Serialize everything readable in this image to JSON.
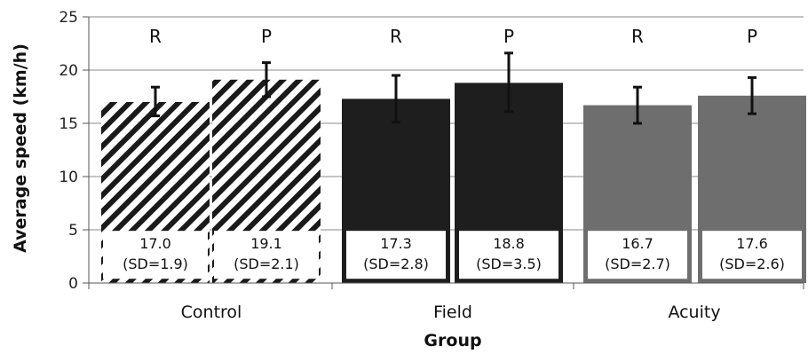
{
  "chart_data": {
    "type": "bar",
    "xlabel": "Group",
    "ylabel": "Average speed (km/h)",
    "ylim": [
      0,
      25
    ],
    "yticks": [
      0,
      5,
      10,
      15,
      20,
      25
    ],
    "grid": true,
    "categories": [
      "Control",
      "Field",
      "Acuity"
    ],
    "bar_labels": [
      "R",
      "P",
      "R",
      "P",
      "R",
      "P"
    ],
    "bars": [
      {
        "group": "Control",
        "label": "R",
        "value": 17.0,
        "value_text": "17.0",
        "sd": 1.9,
        "sd_text": "(SD=1.9)",
        "error_low": 15.7,
        "error_high": 18.4,
        "style": "hatched"
      },
      {
        "group": "Control",
        "label": "P",
        "value": 19.1,
        "value_text": "19.1",
        "sd": 2.1,
        "sd_text": "(SD=2.1)",
        "error_low": 17.5,
        "error_high": 20.7,
        "style": "hatched"
      },
      {
        "group": "Field",
        "label": "R",
        "value": 17.3,
        "value_text": "17.3",
        "sd": 2.8,
        "sd_text": "(SD=2.8)",
        "error_low": 15.1,
        "error_high": 19.5,
        "style": "black"
      },
      {
        "group": "Field",
        "label": "P",
        "value": 18.8,
        "value_text": "18.8",
        "sd": 3.5,
        "sd_text": "(SD=3.5)",
        "error_low": 16.1,
        "error_high": 21.6,
        "style": "black"
      },
      {
        "group": "Acuity",
        "label": "R",
        "value": 16.7,
        "value_text": "16.7",
        "sd": 2.7,
        "sd_text": "(SD=2.7)",
        "error_low": 15.0,
        "error_high": 18.4,
        "style": "gray"
      },
      {
        "group": "Acuity",
        "label": "P",
        "value": 17.6,
        "value_text": "17.6",
        "sd": 2.6,
        "sd_text": "(SD=2.6)",
        "error_low": 15.9,
        "error_high": 19.3,
        "style": "gray"
      }
    ],
    "colors": {
      "black": "#1e1e1e",
      "gray": "#6e6e6e",
      "hatch": "#1a1a1a",
      "grid": "#8a8a8a"
    }
  }
}
